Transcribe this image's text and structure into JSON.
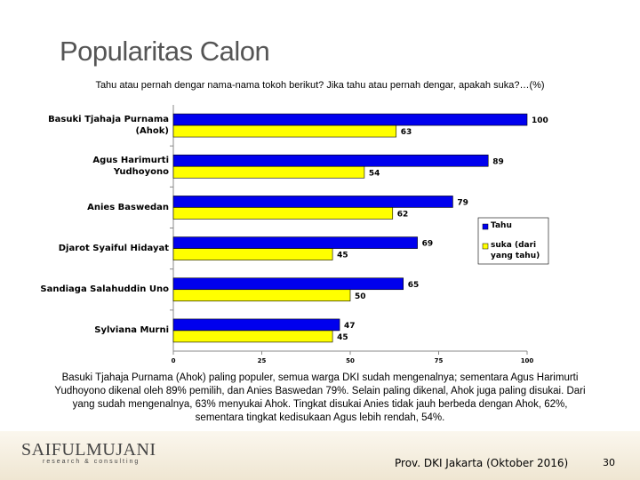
{
  "chart_data": {
    "type": "barh",
    "title": "Popularitas Calon",
    "subtitle": "Tahu atau pernah dengar nama-nama tokoh berikut? Jika tahu atau pernah dengar, apakah suka?…(%)",
    "categories": [
      "Basuki Tjahaja Purnama (Ahok)",
      "Agus Harimurti Yudhoyono",
      "Anies Baswedan",
      "Djarot Syaiful Hidayat",
      "Sandiaga Salahuddin Uno",
      "Sylviana Murni"
    ],
    "series": [
      {
        "name": "Tahu",
        "color": "#0000ee",
        "values": [
          100,
          89,
          79,
          69,
          65,
          47
        ]
      },
      {
        "name": "suka (dari yang tahu)",
        "color": "#ffff00",
        "values": [
          63,
          54,
          62,
          45,
          50,
          45
        ]
      }
    ],
    "xlim": [
      0,
      100
    ],
    "xticks": [
      0,
      25,
      50,
      75,
      100
    ],
    "legend": "right"
  },
  "paragraph": "Basuki Tjahaja Purnama (Ahok) paling populer, semua warga DKI sudah mengenalnya; sementara Agus Harimurti Yudhoyono dikenal oleh 89% pemilih, dan Anies Baswedan 79%. Selain paling dikenal, Ahok juga paling disukai. Dari yang sudah mengenalnya, 63% menyukai Ahok. Tingkat disukai Anies tidak jauh berbeda dengan Ahok, 62%, sementara tingkat kedisukaan Agus lebih rendah, 54%.",
  "footer": {
    "logo": "SAIFULMUJANI",
    "tagline": "research & consulting",
    "source": "Prov. DKI Jakarta (Oktober 2016)",
    "page": "30"
  }
}
